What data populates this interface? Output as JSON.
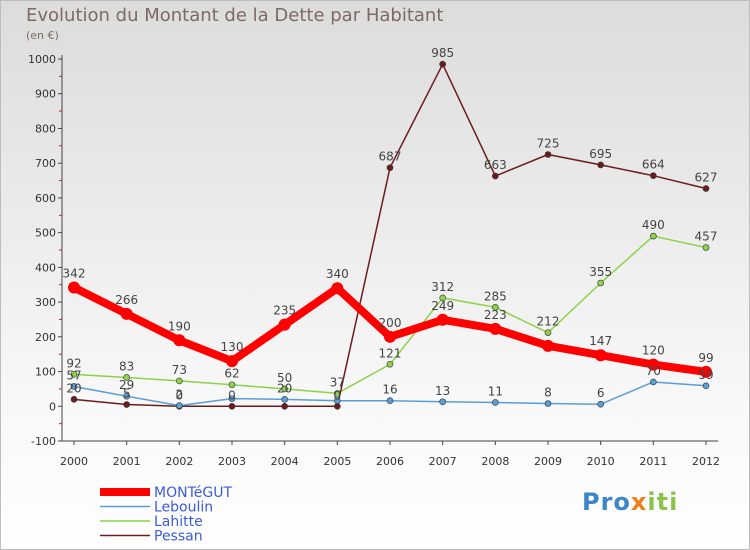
{
  "header": {
    "title": "Evolution du Montant de la Dette par Habitant",
    "subtitle": "(en €)"
  },
  "brand": {
    "part1": "Pro",
    "part2": "x",
    "part3": "iti"
  },
  "colors": {
    "MONTéGUT": "#ff0000",
    "Leboulin": "#5a9ed6",
    "Lahitte": "#8cd24a",
    "Pessan": "#6b1d1d"
  },
  "chart_data": {
    "type": "line",
    "title": "Evolution du Montant de la Dette par Habitant",
    "subtitle": "(en €)",
    "xlabel": "",
    "ylabel": "",
    "ylim": [
      -100,
      1000
    ],
    "yticks": [
      -100,
      0,
      100,
      200,
      300,
      400,
      500,
      600,
      700,
      800,
      900,
      1000
    ],
    "grid": false,
    "legend_position": "bottom-left",
    "x": [
      2000,
      2001,
      2002,
      2003,
      2004,
      2005,
      2006,
      2007,
      2008,
      2009,
      2010,
      2011,
      2012
    ],
    "series": [
      {
        "name": "MONTéGUT",
        "values": [
          342,
          266,
          190,
          130,
          235,
          340,
          200,
          249,
          223,
          174,
          147,
          120,
          99
        ]
      },
      {
        "name": "Leboulin",
        "values": [
          57,
          29,
          2,
          22,
          20,
          16,
          16,
          13,
          11,
          8,
          6,
          70,
          59
        ]
      },
      {
        "name": "Lahitte",
        "values": [
          92,
          83,
          73,
          62,
          50,
          37,
          121,
          312,
          285,
          212,
          355,
          490,
          457
        ]
      },
      {
        "name": "Pessan",
        "values": [
          20,
          5,
          0,
          0,
          0,
          0,
          687,
          985,
          663,
          725,
          695,
          664,
          627
        ]
      }
    ],
    "data_labels": {
      "MONTéGUT": [
        "342",
        "266",
        "190",
        "130",
        "235",
        "340",
        "200",
        "249",
        "223",
        "",
        "147",
        "120",
        "99"
      ],
      "Leboulin": [
        "57",
        "29",
        "2",
        "",
        "20",
        "",
        "16",
        "13",
        "11",
        "8",
        "6",
        "70",
        "59"
      ],
      "Lahitte": [
        "92",
        "83",
        "73",
        "62",
        "50",
        "37",
        "121",
        "312",
        "285",
        "212",
        "355",
        "490",
        "457"
      ],
      "Pessan": [
        "20",
        "5",
        "0",
        "0",
        "",
        "0",
        "687",
        "985",
        "663",
        "725",
        "695",
        "664",
        "627"
      ]
    }
  }
}
